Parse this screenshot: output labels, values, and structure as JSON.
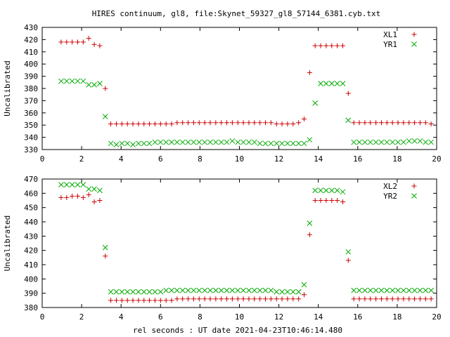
{
  "title": "HIRES continuum, gl8, file:Skynet_59327_gl8_57144_6381.cyb.txt",
  "xlabel": "rel seconds : UT date 2021-04-23T10:46:14.480",
  "colors": {
    "red": "#cc0000",
    "green": "#00aa00"
  },
  "chart_data": [
    {
      "type": "scatter",
      "ylabel": "Uncalibrated",
      "xlim": [
        0,
        20
      ],
      "ylim": [
        330,
        430
      ],
      "xticks": [
        0,
        2,
        4,
        6,
        8,
        10,
        12,
        14,
        16,
        18,
        20
      ],
      "yticks": [
        330,
        340,
        350,
        360,
        370,
        380,
        390,
        400,
        410,
        420,
        430
      ],
      "legend_position": "top-right",
      "series": [
        {
          "name": "XL1",
          "marker": "plus",
          "color": "#cc0000",
          "x": [
            0.96,
            1.24,
            1.52,
            1.8,
            2.08,
            2.36,
            2.64,
            2.92,
            3.2,
            3.48,
            3.76,
            4.04,
            4.32,
            4.6,
            4.88,
            5.16,
            5.44,
            5.72,
            6.0,
            6.28,
            6.56,
            6.84,
            7.12,
            7.4,
            7.68,
            7.96,
            8.24,
            8.52,
            8.8,
            9.08,
            9.36,
            9.64,
            9.92,
            10.2,
            10.48,
            10.76,
            11.04,
            11.32,
            11.6,
            11.88,
            12.16,
            12.44,
            12.72,
            13.0,
            13.28,
            13.56,
            13.84,
            14.12,
            14.4,
            14.68,
            14.96,
            15.24,
            15.52,
            15.8,
            16.08,
            16.36,
            16.64,
            16.92,
            17.2,
            17.48,
            17.76,
            18.04,
            18.32,
            18.6,
            18.88,
            19.16,
            19.44,
            19.72
          ],
          "y": [
            418,
            418,
            418,
            418,
            418,
            421,
            416,
            415,
            380,
            351,
            351,
            351,
            351,
            351,
            351,
            351,
            351,
            351,
            351,
            351,
            351,
            352,
            352,
            352,
            352,
            352,
            352,
            352,
            352,
            352,
            352,
            352,
            352,
            352,
            352,
            352,
            352,
            352,
            352,
            351,
            351,
            351,
            351,
            352,
            355,
            393,
            415,
            415,
            415,
            415,
            415,
            415,
            376,
            352,
            352,
            352,
            352,
            352,
            352,
            352,
            352,
            352,
            352,
            352,
            352,
            352,
            352,
            351
          ],
          "y_draw": [
            418,
            418,
            418,
            418,
            418,
            421,
            416,
            415,
            380,
            351,
            351,
            351,
            351,
            351,
            351,
            351,
            351,
            351,
            351,
            351,
            351,
            352,
            352,
            352,
            352,
            352,
            352,
            352,
            352,
            352,
            352,
            352,
            352,
            352,
            352,
            352,
            352,
            352,
            352,
            351,
            351,
            351,
            351,
            352,
            355,
            393,
            415,
            415,
            415,
            415,
            415,
            415,
            376,
            352,
            352,
            352,
            352,
            352,
            352,
            352,
            352,
            352,
            352,
            352,
            352,
            352,
            352,
            351
          ]
        },
        {
          "name": "YR1",
          "marker": "cross",
          "color": "#00aa00",
          "x": [
            0.96,
            1.24,
            1.52,
            1.8,
            2.08,
            2.36,
            2.64,
            2.92,
            3.2,
            3.48,
            3.76,
            4.04,
            4.32,
            4.6,
            4.88,
            5.16,
            5.44,
            5.72,
            6.0,
            6.28,
            6.56,
            6.84,
            7.12,
            7.4,
            7.68,
            7.96,
            8.24,
            8.52,
            8.8,
            9.08,
            9.36,
            9.64,
            9.92,
            10.2,
            10.48,
            10.76,
            11.04,
            11.32,
            11.6,
            11.88,
            12.16,
            12.44,
            12.72,
            13.0,
            13.28,
            13.56,
            13.84,
            14.12,
            14.4,
            14.68,
            14.96,
            15.24,
            15.52,
            15.8,
            16.08,
            16.36,
            16.64,
            16.92,
            17.2,
            17.48,
            17.76,
            18.04,
            18.32,
            18.6,
            18.88,
            19.16,
            19.44,
            19.72
          ],
          "y": [
            386,
            386,
            386,
            386,
            386,
            383,
            383,
            384,
            357,
            335,
            335,
            335,
            335,
            335,
            335,
            335,
            335,
            335,
            335,
            335,
            335,
            335,
            335,
            335,
            335,
            335,
            335,
            335,
            336,
            336,
            336,
            336,
            336,
            336,
            336,
            336,
            335,
            335,
            335,
            335,
            335,
            335,
            335,
            335,
            335,
            338,
            368,
            384,
            384,
            384,
            384,
            384,
            354,
            336,
            336,
            336,
            336,
            336,
            336,
            336,
            336,
            336,
            336,
            336,
            336,
            336,
            336,
            336
          ],
          "y_draw": [
            386,
            386,
            386,
            386,
            386,
            383,
            383,
            384,
            357,
            335,
            334,
            335,
            335,
            334,
            335,
            335,
            335,
            336,
            336,
            336,
            336,
            336,
            336,
            336,
            336,
            336,
            336,
            336,
            336,
            336,
            336,
            337,
            336,
            336,
            336,
            336,
            335,
            335,
            335,
            335,
            335,
            335,
            335,
            335,
            335,
            338,
            368,
            384,
            384,
            384,
            384,
            384,
            354,
            336,
            336,
            336,
            336,
            336,
            336,
            336,
            336,
            336,
            336,
            337,
            337,
            337,
            336,
            336
          ]
        }
      ]
    },
    {
      "type": "scatter",
      "ylabel": "Uncalibrated",
      "xlim": [
        0,
        20
      ],
      "ylim": [
        380,
        470
      ],
      "xticks": [
        0,
        2,
        4,
        6,
        8,
        10,
        12,
        14,
        16,
        18,
        20
      ],
      "yticks": [
        380,
        390,
        400,
        410,
        420,
        430,
        440,
        450,
        460,
        470
      ],
      "legend_position": "top-right",
      "series": [
        {
          "name": "XL2",
          "marker": "plus",
          "color": "#cc0000",
          "x": [
            0.96,
            1.24,
            1.52,
            1.8,
            2.08,
            2.36,
            2.64,
            2.92,
            3.2,
            3.48,
            3.76,
            4.04,
            4.32,
            4.6,
            4.88,
            5.16,
            5.44,
            5.72,
            6.0,
            6.28,
            6.56,
            6.84,
            7.12,
            7.4,
            7.68,
            7.96,
            8.24,
            8.52,
            8.8,
            9.08,
            9.36,
            9.64,
            9.92,
            10.2,
            10.48,
            10.76,
            11.04,
            11.32,
            11.6,
            11.88,
            12.16,
            12.44,
            12.72,
            13.0,
            13.28,
            13.56,
            13.84,
            14.12,
            14.4,
            14.68,
            14.96,
            15.24,
            15.52,
            15.8,
            16.08,
            16.36,
            16.64,
            16.92,
            17.2,
            17.48,
            17.76,
            18.04,
            18.32,
            18.6,
            18.88,
            19.16,
            19.44,
            19.72
          ],
          "y": [
            457,
            457,
            458,
            458,
            457,
            459,
            454,
            455,
            416,
            385,
            385,
            385,
            385,
            385,
            385,
            385,
            385,
            385,
            385,
            385,
            385,
            386,
            386,
            386,
            386,
            386,
            386,
            386,
            386,
            386,
            386,
            386,
            386,
            386,
            386,
            386,
            386,
            386,
            386,
            386,
            386,
            386,
            386,
            386,
            386,
            389,
            431,
            455,
            455,
            455,
            455,
            455,
            454,
            413,
            386,
            386,
            386,
            386,
            386,
            386,
            386,
            386,
            386,
            386,
            386,
            386,
            386,
            386
          ],
          "y_draw": [
            457,
            457,
            458,
            458,
            457,
            459,
            454,
            455,
            416,
            385,
            385,
            385,
            385,
            385,
            385,
            385,
            385,
            385,
            385,
            385,
            385,
            386,
            386,
            386,
            386,
            386,
            386,
            386,
            386,
            386,
            386,
            386,
            386,
            386,
            386,
            386,
            386,
            386,
            386,
            386,
            386,
            386,
            386,
            386,
            389,
            431,
            455,
            455,
            455,
            455,
            455,
            454,
            413,
            386,
            386,
            386,
            386,
            386,
            386,
            386,
            386,
            386,
            386,
            386,
            386,
            386,
            386,
            386
          ]
        },
        {
          "name": "YR2",
          "marker": "cross",
          "color": "#00aa00",
          "x": [
            0.96,
            1.24,
            1.52,
            1.8,
            2.08,
            2.36,
            2.64,
            2.92,
            3.2,
            3.48,
            3.76,
            4.04,
            4.32,
            4.6,
            4.88,
            5.16,
            5.44,
            5.72,
            6.0,
            6.28,
            6.56,
            6.84,
            7.12,
            7.4,
            7.68,
            7.96,
            8.24,
            8.52,
            8.8,
            9.08,
            9.36,
            9.64,
            9.92,
            10.2,
            10.48,
            10.76,
            11.04,
            11.32,
            11.6,
            11.88,
            12.16,
            12.44,
            12.72,
            13.0,
            13.28,
            13.56,
            13.84,
            14.12,
            14.4,
            14.68,
            14.96,
            15.24,
            15.52,
            15.8,
            16.08,
            16.36,
            16.64,
            16.92,
            17.2,
            17.48,
            17.76,
            18.04,
            18.32,
            18.6,
            18.88,
            19.16,
            19.44,
            19.72
          ],
          "y": [
            466,
            466,
            466,
            466,
            466,
            463,
            463,
            462,
            422,
            391,
            391,
            391,
            391,
            391,
            391,
            391,
            391,
            391,
            391,
            392,
            392,
            392,
            392,
            392,
            392,
            392,
            392,
            392,
            392,
            392,
            392,
            392,
            392,
            392,
            392,
            392,
            392,
            392,
            392,
            391,
            391,
            391,
            391,
            391,
            391,
            396,
            439,
            462,
            462,
            462,
            462,
            462,
            461,
            419,
            392,
            392,
            392,
            392,
            392,
            392,
            392,
            392,
            392,
            392,
            392,
            392,
            392,
            392
          ],
          "y_draw": [
            466,
            466,
            466,
            466,
            466,
            463,
            463,
            462,
            422,
            391,
            391,
            391,
            391,
            391,
            391,
            391,
            391,
            391,
            391,
            392,
            392,
            392,
            392,
            392,
            392,
            392,
            392,
            392,
            392,
            392,
            392,
            392,
            392,
            392,
            392,
            392,
            392,
            392,
            392,
            391,
            391,
            391,
            391,
            391,
            396,
            439,
            462,
            462,
            462,
            462,
            462,
            461,
            419,
            392,
            392,
            392,
            392,
            392,
            392,
            392,
            392,
            392,
            392,
            392,
            392,
            392,
            392,
            392
          ]
        }
      ]
    }
  ]
}
